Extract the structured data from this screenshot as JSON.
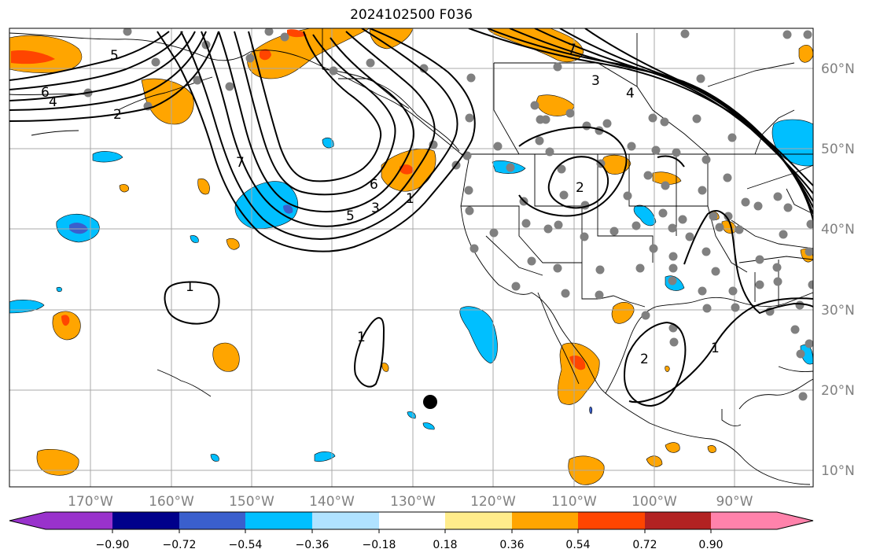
{
  "title": "2024102500 F036",
  "map": {
    "lon_ticks": [
      "170°W",
      "160°W",
      "150°W",
      "140°W",
      "130°W",
      "120°W",
      "110°W",
      "100°W",
      "90°W"
    ],
    "lat_ticks": [
      "60°N",
      "50°N",
      "40°N",
      "30°N",
      "20°N",
      "10°N"
    ],
    "grid": true,
    "contour_labels": [
      "1",
      "1",
      "1",
      "1",
      "2",
      "2",
      "3",
      "3",
      "4",
      "4",
      "5",
      "5",
      "6",
      "6",
      "7"
    ],
    "contour_color": "#000000",
    "station_marker_color": "#808080",
    "storm_marker_color": "#000000"
  },
  "colorbar": {
    "ticks": [
      "−0.90",
      "−0.72",
      "−0.54",
      "−0.36",
      "−0.18",
      "0.18",
      "0.36",
      "0.54",
      "0.72",
      "0.90"
    ],
    "colors": [
      "#9932cc",
      "#00008b",
      "#3a5fcd",
      "#00bfff",
      "#b0e2ff",
      "#ffffff",
      "#ffec8b",
      "#ffa500",
      "#ff4500",
      "#b22222",
      "#ff82ab"
    ],
    "extend": "both"
  }
}
